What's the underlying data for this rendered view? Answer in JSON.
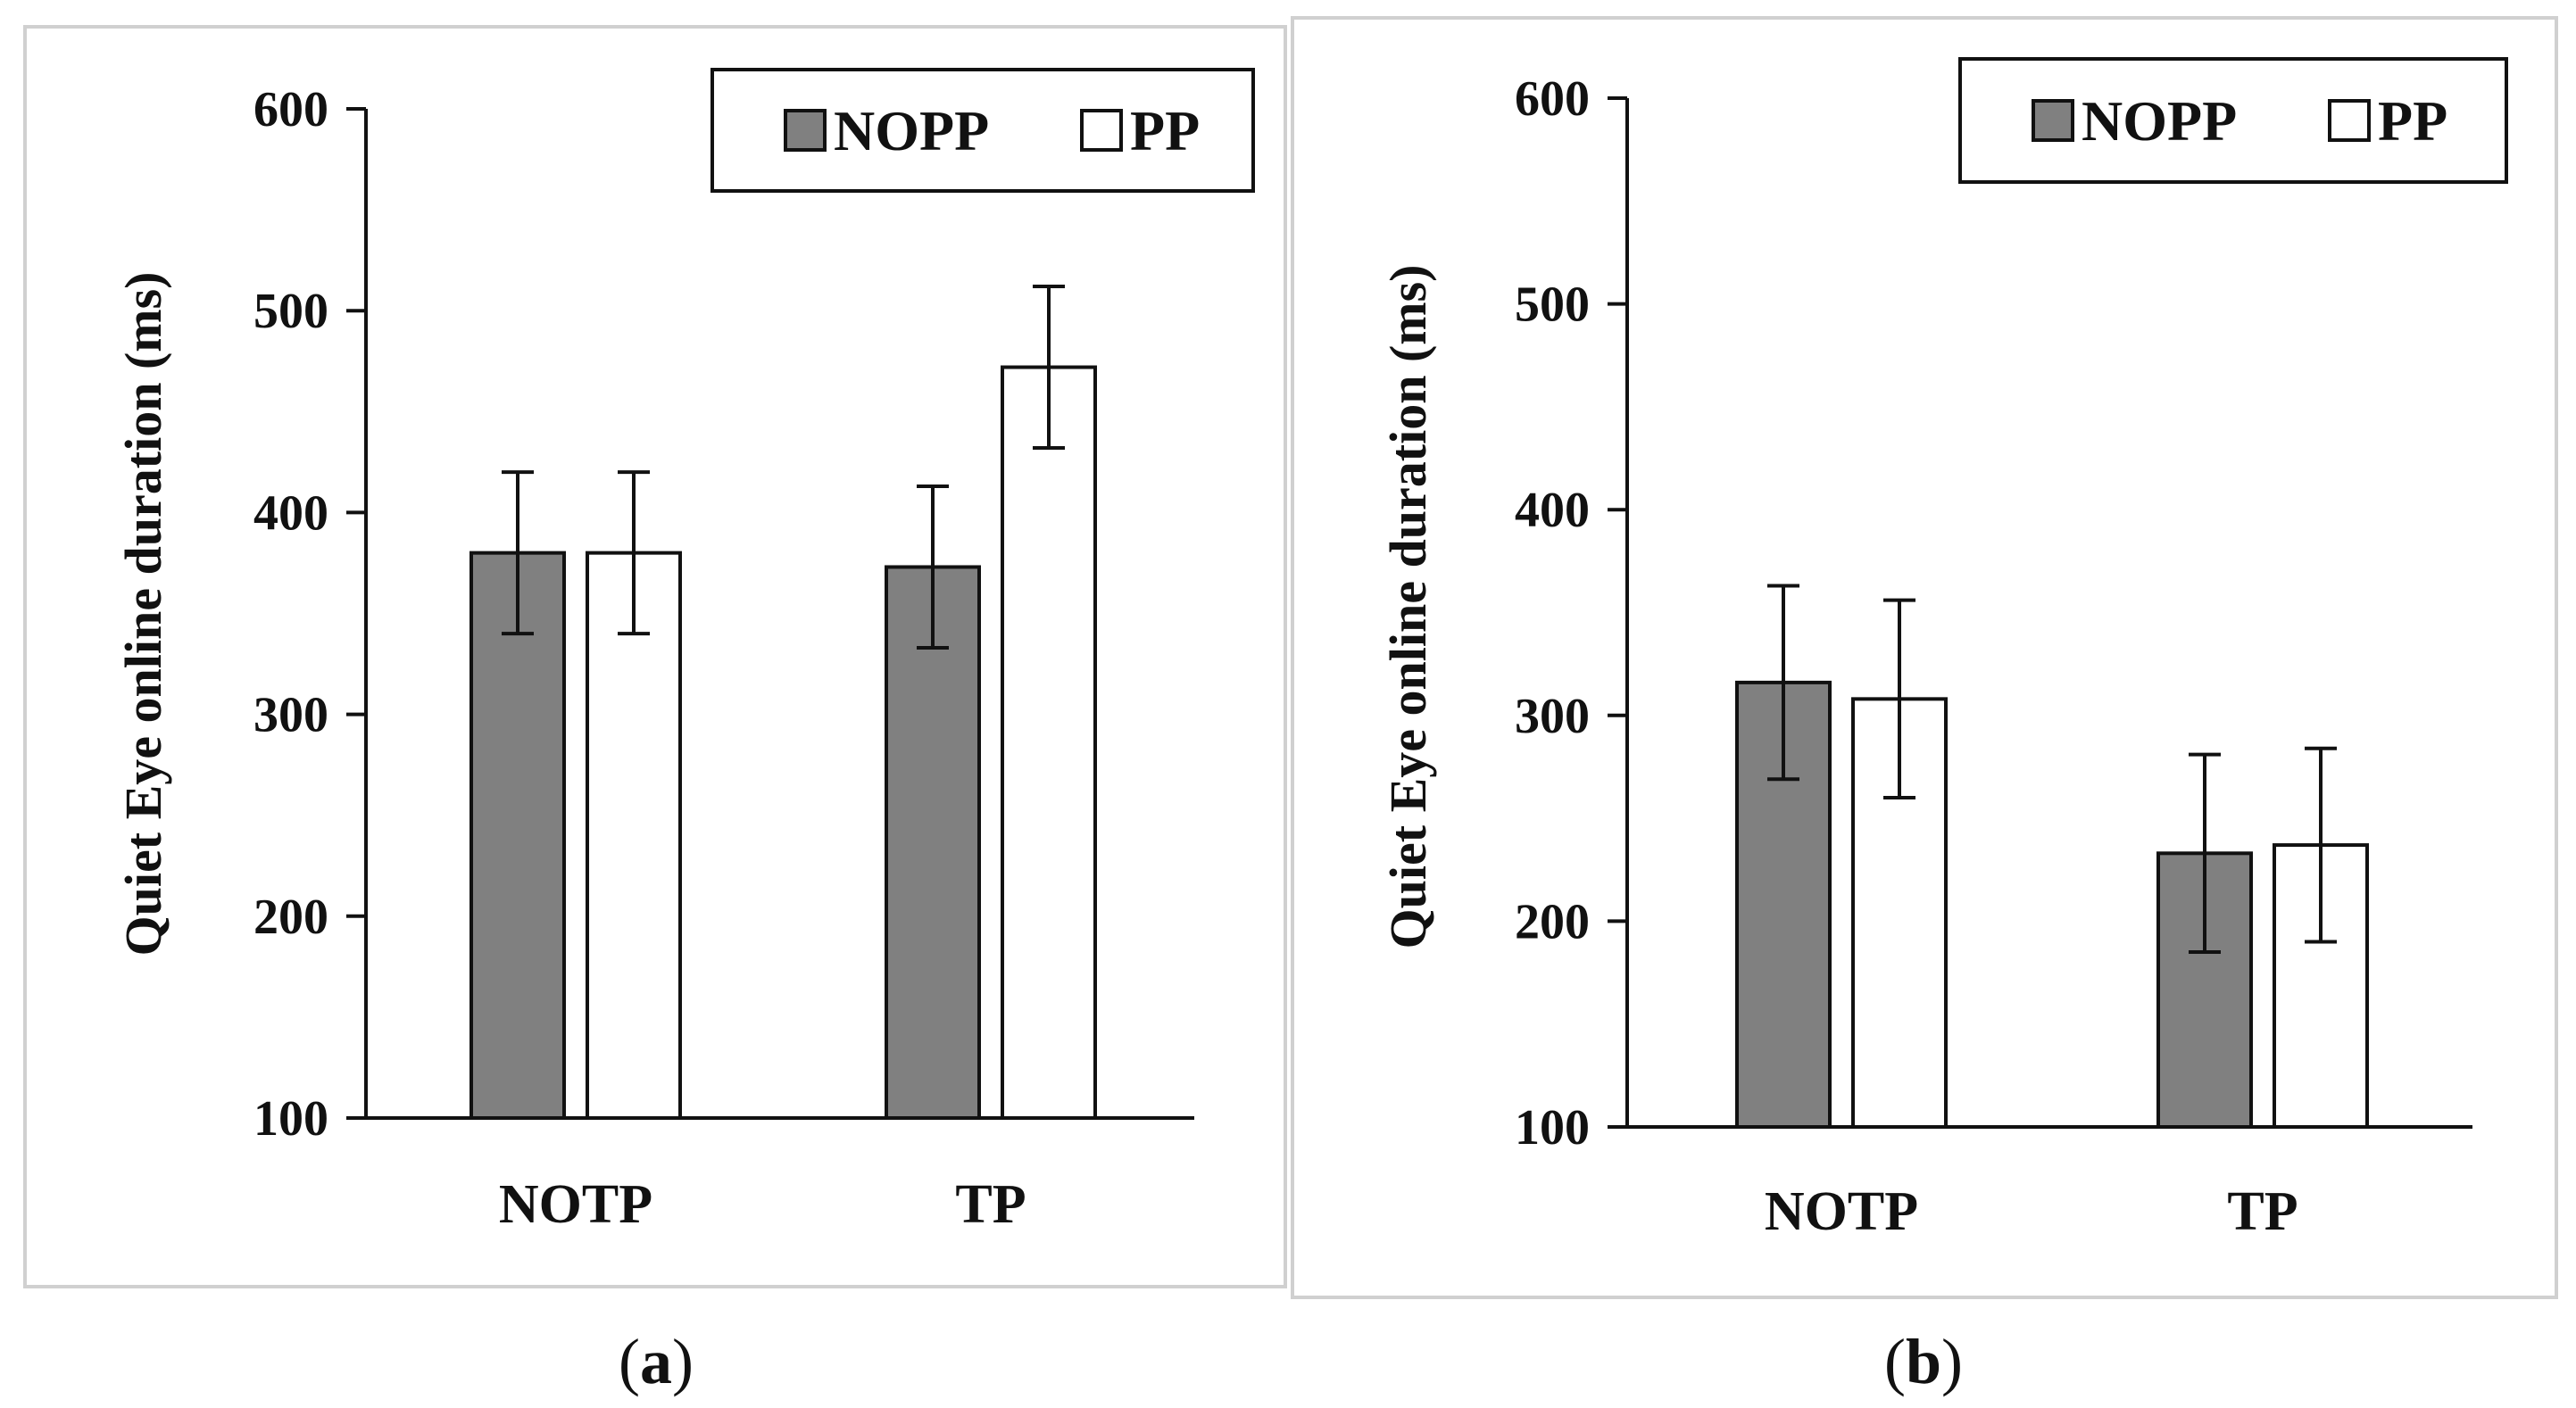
{
  "figure": {
    "panel_labels": [
      {
        "open": "(",
        "letter": "a",
        "close": ")"
      },
      {
        "open": "(",
        "letter": "b",
        "close": ")"
      }
    ]
  },
  "chart_data": [
    {
      "type": "bar",
      "panel": "a",
      "categories": [
        "NOTP",
        "TP"
      ],
      "series": [
        {
          "name": "NOPP",
          "color": "#808080",
          "values": [
            380,
            373
          ],
          "errors": [
            40,
            40
          ]
        },
        {
          "name": "PP",
          "color": "#ffffff",
          "values": [
            380,
            472
          ],
          "errors": [
            40,
            40
          ]
        }
      ],
      "ylabel": "Quiet Eye online duration (ms)",
      "xlabel": "",
      "ylim": [
        100,
        600
      ],
      "yticks": [
        100,
        200,
        300,
        400,
        500,
        600
      ],
      "legend_position": "top-right",
      "grid": false
    },
    {
      "type": "bar",
      "panel": "b",
      "categories": [
        "NOTP",
        "TP"
      ],
      "series": [
        {
          "name": "NOPP",
          "color": "#808080",
          "values": [
            316,
            233
          ],
          "errors": [
            47,
            48
          ]
        },
        {
          "name": "PP",
          "color": "#ffffff",
          "values": [
            308,
            237
          ],
          "errors": [
            48,
            47
          ]
        }
      ],
      "ylabel": "Quiet Eye online duration (ms)",
      "xlabel": "",
      "ylim": [
        100,
        600
      ],
      "yticks": [
        100,
        200,
        300,
        400,
        500,
        600
      ],
      "legend_position": "top-right",
      "grid": false
    }
  ]
}
